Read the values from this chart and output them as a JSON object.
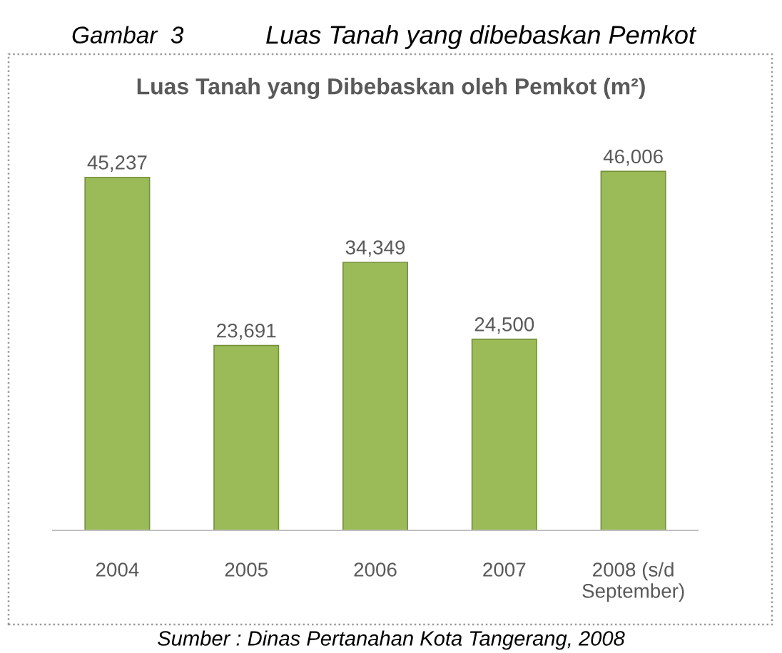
{
  "chart_data": {
    "type": "bar",
    "title": "Luas Tanah yang Dibebaskan oleh Pemkot (m²)",
    "categories": [
      "2004",
      "2005",
      "2006",
      "2007",
      "2008 (s/d\nSeptember)"
    ],
    "values": [
      45237,
      23691,
      34349,
      24500,
      46006
    ],
    "color": "#9bbb59",
    "value_labels": [
      "45,237",
      "23,691",
      "34,349",
      "24,500",
      "46,006"
    ],
    "annotations": [
      "Gambar  3",
      "Luas Tanah yang dibebaskan Pemkot",
      "Sumber : Dinas Pertanahan Kota Tangerang, 2008"
    ]
  }
}
